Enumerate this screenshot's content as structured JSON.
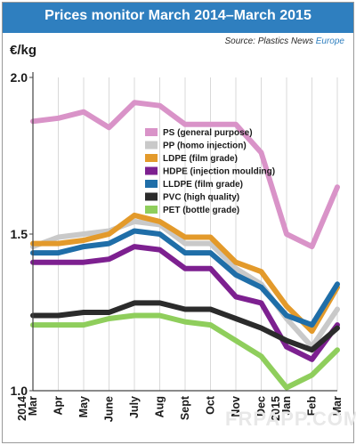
{
  "header": {
    "title": "Prices monitor March 2014–March 2015",
    "source_prefix": "Source: Plastics News ",
    "source_highlight": "Europe"
  },
  "watermark": "FRPAPP.COM",
  "chart_data": {
    "type": "line",
    "ylabel": "€/kg",
    "ylim": [
      1.0,
      2.0
    ],
    "yticks": [
      "1.0",
      "1.5",
      "2.0"
    ],
    "x": [
      {
        "main": "Mar",
        "year": "2014"
      },
      {
        "main": "Apr"
      },
      {
        "main": "May"
      },
      {
        "main": "June"
      },
      {
        "main": "July"
      },
      {
        "main": "Aug"
      },
      {
        "main": "Sept"
      },
      {
        "main": "Oct"
      },
      {
        "main": "Nov"
      },
      {
        "main": "Dec"
      },
      {
        "main": "Jan",
        "year": "2015"
      },
      {
        "main": "Feb"
      },
      {
        "main": "Mar"
      }
    ],
    "legend_position": "center",
    "series": [
      {
        "name": "PS (general purpose)",
        "color": "#d993c8",
        "values": [
          1.86,
          1.87,
          1.89,
          1.84,
          1.92,
          1.91,
          1.85,
          1.85,
          1.85,
          1.76,
          1.5,
          1.46,
          1.65
        ]
      },
      {
        "name": "PP (homo injection)",
        "color": "#c9c9c9",
        "values": [
          1.46,
          1.49,
          1.5,
          1.51,
          1.54,
          1.53,
          1.47,
          1.47,
          1.39,
          1.34,
          1.23,
          1.14,
          1.26
        ]
      },
      {
        "name": "LDPE (film grade)",
        "color": "#e39a2b",
        "values": [
          1.47,
          1.47,
          1.48,
          1.5,
          1.56,
          1.54,
          1.49,
          1.49,
          1.41,
          1.38,
          1.27,
          1.19,
          1.33
        ]
      },
      {
        "name": "HDPE (injection moulding)",
        "color": "#7d2090",
        "values": [
          1.41,
          1.41,
          1.41,
          1.42,
          1.46,
          1.45,
          1.39,
          1.39,
          1.3,
          1.28,
          1.14,
          1.1,
          1.21
        ]
      },
      {
        "name": "LLDPE (film grade)",
        "color": "#1f6ea8",
        "values": [
          1.44,
          1.44,
          1.46,
          1.47,
          1.51,
          1.5,
          1.44,
          1.44,
          1.37,
          1.33,
          1.24,
          1.21,
          1.34
        ]
      },
      {
        "name": "PVC (high quality)",
        "color": "#2b2b2b",
        "values": [
          1.24,
          1.24,
          1.25,
          1.25,
          1.28,
          1.28,
          1.26,
          1.26,
          1.23,
          1.2,
          1.16,
          1.13,
          1.2
        ]
      },
      {
        "name": "PET (bottle grade)",
        "color": "#8fce5c",
        "values": [
          1.21,
          1.21,
          1.21,
          1.23,
          1.24,
          1.24,
          1.22,
          1.21,
          1.16,
          1.11,
          1.01,
          1.05,
          1.13
        ]
      }
    ]
  }
}
